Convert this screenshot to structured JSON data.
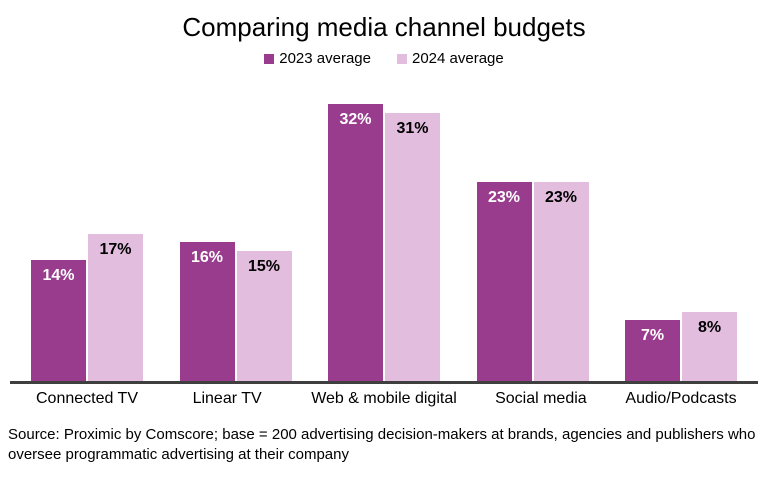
{
  "title": "Comparing media channel budgets",
  "legend": [
    {
      "label": "2023 average",
      "color": "#9A3C8D"
    },
    {
      "label": "2024 average",
      "color": "#E2BDDE"
    }
  ],
  "source_note": "Source: Proximic by Comscore; base = 200 advertising decision-makers at brands, agencies and publishers who oversee programmatic advertising at their company",
  "chart_data": {
    "type": "bar",
    "title": "Comparing media channel budgets",
    "categories": [
      "Connected TV",
      "Linear TV",
      "Web & mobile digital",
      "Social media",
      "Audio/Podcasts"
    ],
    "series": [
      {
        "name": "2023 average",
        "color": "#9A3C8D",
        "label_color": "#FFFFFF",
        "values": [
          14,
          16,
          32,
          23,
          7
        ]
      },
      {
        "name": "2024 average",
        "color": "#E2BDDE",
        "label_color": "#000000",
        "values": [
          17,
          15,
          31,
          23,
          8
        ]
      }
    ],
    "value_suffix": "%",
    "ylim": [
      0,
      35
    ],
    "grid": false,
    "y_axis_visible": false,
    "legend_position": "top",
    "data_labels": "inside-top",
    "axis_line_color": "#3F3F3F"
  }
}
